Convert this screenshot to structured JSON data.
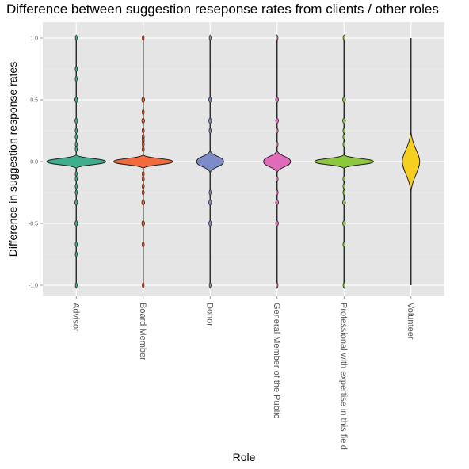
{
  "chart_data": {
    "type": "violin",
    "title": "Difference between suggestion reseponse rates from clients / other roles",
    "xlabel": "Role",
    "ylabel": "Difference in suggestion response rates",
    "ylim": [
      -1.0,
      1.0
    ],
    "y_ticks": [
      "-1.0",
      "-0.5",
      "0.0",
      "0.5",
      "1.0"
    ],
    "grid": true,
    "legend": "none",
    "categories": [
      "Advisor",
      "Board Member",
      "Donor",
      "General Member of the Public",
      "Professional with expertise in this field",
      "Volunteer"
    ],
    "series": [
      {
        "category": "Advisor",
        "color": "#3fae8f",
        "median": 0.0,
        "min": -1.0,
        "max": 1.0,
        "points": [
          1.0,
          0.75,
          0.67,
          0.5,
          0.33,
          0.25,
          0.2,
          0.14,
          0.1,
          -0.1,
          -0.14,
          -0.2,
          -0.25,
          -0.33,
          -0.5,
          -0.67,
          -0.75,
          -1.0
        ]
      },
      {
        "category": "Board Member",
        "color": "#f26b3d",
        "median": 0.0,
        "min": -1.0,
        "max": 1.0,
        "points": [
          1.0,
          0.5,
          0.4,
          0.33,
          0.25,
          0.2,
          0.17,
          0.14,
          0.1,
          -0.1,
          -0.14,
          -0.2,
          -0.25,
          -0.33,
          -0.5,
          -0.67,
          -1.0
        ]
      },
      {
        "category": "Donor",
        "color": "#7b8cc8",
        "median": 0.0,
        "min": -1.0,
        "max": 1.0,
        "points": [
          1.0,
          0.5,
          0.33,
          0.25,
          -0.25,
          -0.33,
          -0.5,
          -1.0
        ]
      },
      {
        "category": "General Member of the Public",
        "color": "#e06bb8",
        "median": 0.0,
        "min": -1.0,
        "max": 1.0,
        "points": [
          1.0,
          0.5,
          0.33,
          0.25,
          0.14,
          -0.14,
          -0.25,
          -0.33,
          -0.5,
          -1.0
        ]
      },
      {
        "category": "Professional with expertise in this field",
        "color": "#8dc63f",
        "median": 0.0,
        "min": -1.0,
        "max": 1.0,
        "points": [
          1.0,
          0.5,
          0.33,
          0.25,
          0.2,
          0.14,
          -0.14,
          -0.2,
          -0.25,
          -0.33,
          -0.5,
          -0.67,
          -1.0
        ]
      },
      {
        "category": "Volunteer",
        "color": "#f7d01f",
        "median": 0.0,
        "min": -1.0,
        "max": 1.0,
        "points": []
      }
    ]
  }
}
